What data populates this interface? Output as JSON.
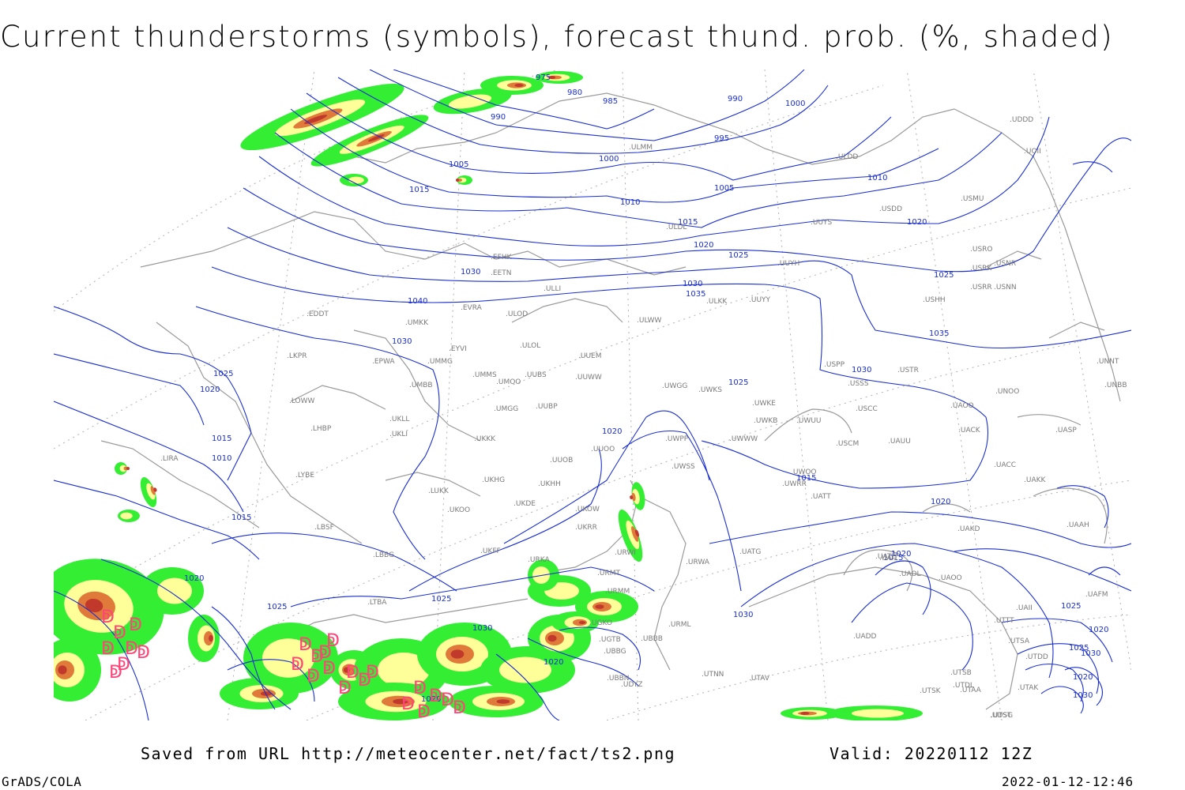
{
  "title": "Current thunderstorms (symbols), forecast thund. prob. (%, shaded)",
  "footer": {
    "saved_from": "Saved from URL http://meteocenter.net/fact/ts2.png",
    "valid": "Valid: 20220112 12Z",
    "software": "GrADS/COLA",
    "generated": "2022-01-12-12:46"
  },
  "colors": {
    "isobar": "#1a2fd0",
    "coastline": "#9a9a9a",
    "grid": "#b0b0b0",
    "prob_low": "#33ee33",
    "prob_mid": "#ffff99",
    "prob_high": "#e07a3a",
    "prob_max": "#c0392b",
    "thunderstorm_symbol": "#ff4477"
  },
  "isobar_labels": [
    "975",
    "980",
    "985",
    "990",
    "990",
    "995",
    "1000",
    "1000",
    "1005",
    "1005",
    "1010",
    "1010",
    "1015",
    "1015",
    "1020",
    "1020",
    "1025",
    "1025",
    "1030",
    "1030",
    "1035",
    "1035",
    "1040",
    "1030",
    "1025",
    "1020",
    "1030",
    "1025",
    "1020",
    "1015",
    "1015",
    "1010",
    "1015",
    "1020",
    "1020",
    "1025",
    "1030",
    "1020",
    "1025",
    "1020",
    "1015",
    "1020",
    "1030",
    "1025",
    "1020",
    "1025",
    "1020",
    "1030",
    "1030"
  ],
  "stations": [
    "UDDD",
    "UOII",
    "ULDD",
    "ULMM",
    "USDD",
    "USMU",
    "UUYS",
    "ULDL",
    "USRO",
    "USRK",
    "USNR",
    "USRR",
    "USNN",
    "UUYH",
    "USHH",
    "EFHK",
    "EETN",
    "ULLI",
    "ULKK",
    "UUYY",
    "EYVI",
    "ULOL",
    "ULWW",
    "EVRA",
    "ULOD",
    "EDDT",
    "UMKK",
    "LKPR",
    "EPWA",
    "UMMG",
    "UUEM",
    "USPP",
    "USTR",
    "UNNT",
    "UNBB",
    "UMBB",
    "UMMS",
    "UMOO",
    "UUBS",
    "UUWW",
    "UWGG",
    "UWKS",
    "USSS",
    "UNOO",
    "LOWW",
    "UKLL",
    "UMGG",
    "UUBP",
    "UWKE",
    "USCC",
    "UAOO",
    "UKLI",
    "LHBP",
    "UKKK",
    "UWKB",
    "UWUU",
    "UACK",
    "UASP",
    "UUOO",
    "UWPP",
    "UWWW",
    "USCM",
    "UAUU",
    "LIRA",
    "UUOB",
    "UWSS",
    "UACC",
    "LYBE",
    "UKHG",
    "UKOO",
    "UKHH",
    "UWRR",
    "UAKK",
    "UWOO",
    "UATT",
    "LUKK",
    "UKDE",
    "UKOW",
    "UKRR",
    "LBSF",
    "UAKD",
    "UAAH",
    "UATG",
    "UKFF",
    "LBBG",
    "URKA",
    "URWI",
    "UAIT",
    "UATE",
    "URMT",
    "URWA",
    "UAOL",
    "UAOO",
    "UAFM",
    "URMM",
    "LTBA",
    "URML",
    "UGKO",
    "UGTB",
    "UBBB",
    "UTNN",
    "UADD",
    "UAII",
    "UTTT",
    "UTSA",
    "UTSB",
    "UTDL",
    "UTDD",
    "UTAK",
    "UTAV",
    "UTSK",
    "UTAA",
    "UTST",
    "UDSG",
    "UBBG",
    "UBBN",
    "UDYZ"
  ],
  "thunderstorm_symbol": "ↁ"
}
